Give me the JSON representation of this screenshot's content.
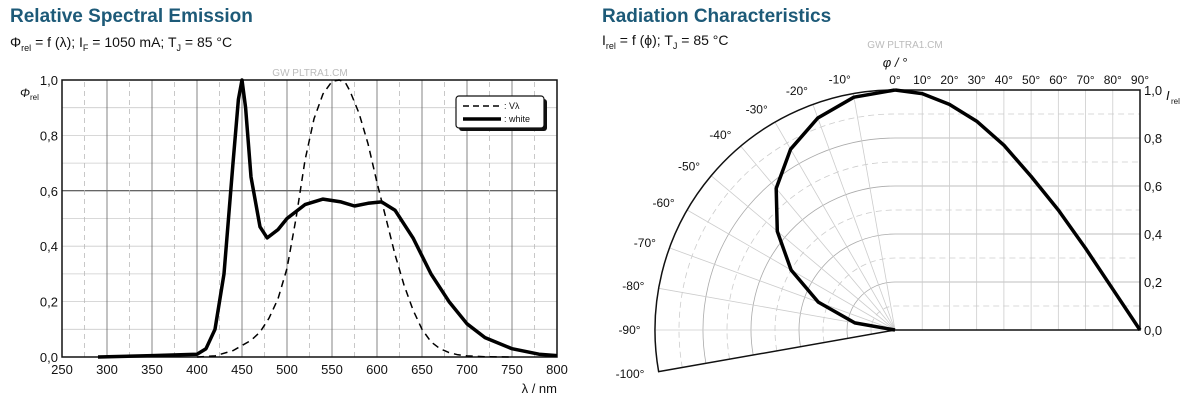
{
  "left": {
    "title": "Relative Spectral Emission",
    "sub": [
      "Φ",
      "rel",
      " = f (λ); I",
      "F",
      " = 1050 mA; T",
      "J",
      " = 85 °C"
    ],
    "watermark": "GW PLTRA1.CM"
  },
  "right": {
    "title": "Radiation Characteristics",
    "sub": [
      "I",
      "rel",
      " = f (ϕ); T",
      "J",
      " = 85 °C"
    ],
    "watermark": "GW PLTRA1.CM"
  },
  "chart_data": [
    {
      "type": "line",
      "xlabel": "λ / nm",
      "ylabel": "Φrel",
      "ylabel_main": "Φ",
      "ylabel_sub": "rel",
      "xlim": [
        250,
        800
      ],
      "ylim": [
        0,
        1
      ],
      "grid": true,
      "legend": "top-right",
      "xticks": [
        "250",
        "300",
        "350",
        "400",
        "450",
        "500",
        "550",
        "600",
        "650",
        "700",
        "750",
        "800"
      ],
      "yticks": [
        "0,0",
        "0,2",
        "0,4",
        "0,6",
        "0,8",
        "1,0"
      ],
      "series": [
        {
          "name": ": Vλ",
          "style": "dashed",
          "x": [
            400,
            420,
            440,
            460,
            470,
            480,
            490,
            500,
            510,
            520,
            530,
            540,
            550,
            558,
            565,
            570,
            580,
            590,
            600,
            610,
            620,
            630,
            640,
            650,
            660,
            670,
            680,
            690,
            700,
            720,
            750
          ],
          "y": [
            0,
            0.004,
            0.023,
            0.06,
            0.09,
            0.14,
            0.21,
            0.32,
            0.5,
            0.71,
            0.86,
            0.95,
            0.995,
            1.0,
            0.99,
            0.96,
            0.88,
            0.77,
            0.63,
            0.5,
            0.37,
            0.26,
            0.17,
            0.1,
            0.055,
            0.03,
            0.016,
            0.008,
            0.004,
            0.001,
            0
          ]
        },
        {
          "name": ": white",
          "style": "solid",
          "x": [
            290,
            350,
            400,
            410,
            420,
            430,
            440,
            446,
            450,
            454,
            460,
            470,
            478,
            490,
            500,
            520,
            540,
            560,
            575,
            590,
            605,
            620,
            640,
            660,
            680,
            700,
            720,
            750,
            780,
            800
          ],
          "y": [
            0,
            0.005,
            0.01,
            0.03,
            0.1,
            0.3,
            0.7,
            0.93,
            1.0,
            0.9,
            0.65,
            0.47,
            0.43,
            0.46,
            0.5,
            0.55,
            0.57,
            0.56,
            0.545,
            0.555,
            0.56,
            0.53,
            0.43,
            0.3,
            0.2,
            0.12,
            0.07,
            0.03,
            0.01,
            0.005
          ]
        }
      ]
    },
    {
      "type": "polar+line",
      "xlabel": "φ / °",
      "ylabel": "Irel",
      "ylabel_main": "I",
      "ylabel_sub": "rel",
      "ylim": [
        0,
        1
      ],
      "grid": true,
      "angle_ticks": [
        "-100°",
        "-90°",
        "-80°",
        "-70°",
        "-60°",
        "-50°",
        "-40°",
        "-30°",
        "-20°",
        "-10°"
      ],
      "xticks": [
        "0°",
        "10°",
        "20°",
        "30°",
        "40°",
        "50°",
        "60°",
        "70°",
        "80°",
        "90°"
      ],
      "yticks": [
        "0,0",
        "0,2",
        "0,4",
        "0,6",
        "0,8",
        "1,0"
      ],
      "series": [
        {
          "x": [
            0,
            10,
            20,
            30,
            40,
            50,
            60,
            70,
            80,
            90
          ],
          "y": [
            1.0,
            0.985,
            0.94,
            0.87,
            0.77,
            0.64,
            0.5,
            0.34,
            0.17,
            0
          ]
        }
      ]
    }
  ]
}
